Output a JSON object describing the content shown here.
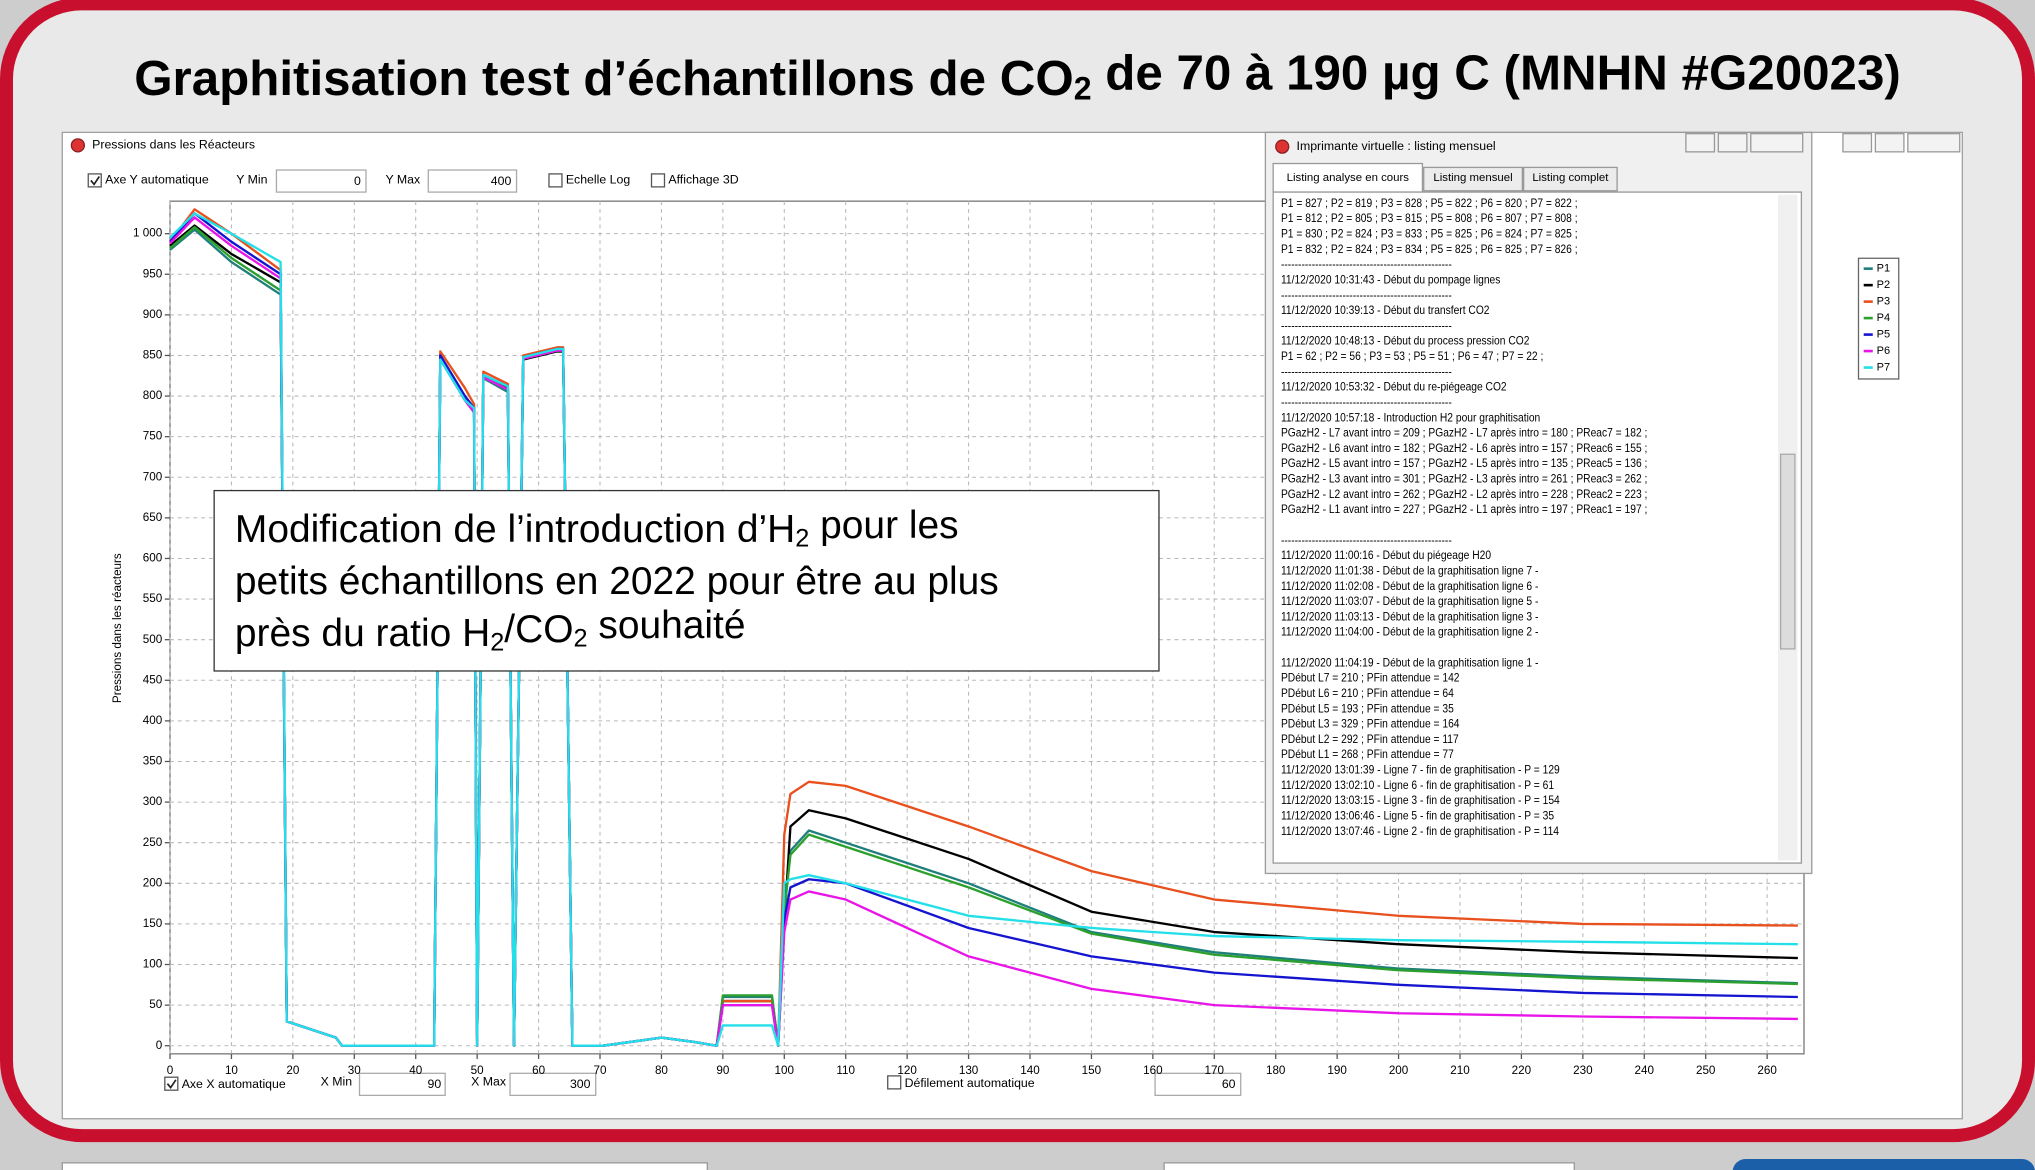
{
  "title_parts": [
    "Graphitisation test d’échantillons de CO",
    "2",
    " de 70 à 190 µg C (MNHN #G20023)"
  ],
  "chart_window": {
    "title": "Pressions dans les Réacteurs",
    "y_auto": "Axe Y automatique",
    "y_min_label": "Y Min",
    "y_min": 0,
    "y_max_label": "Y Max",
    "y_max": 400,
    "log_scale": "Echelle Log",
    "display_3d": "Affichage 3D",
    "x_auto": "Axe X automatique",
    "x_min_label": "X Min",
    "x_min": 90,
    "x_max_label": "X Max",
    "x_max": 300,
    "auto_scroll": "Défilement automatique",
    "scroll_value": 60
  },
  "chart_data": {
    "type": "line",
    "y_label": "Pressions dans les réacteurs",
    "x": [
      0,
      4,
      10,
      18,
      19,
      27,
      28,
      43,
      44,
      48,
      49.5,
      50,
      51,
      55,
      56,
      57.5,
      63,
      64,
      65.5,
      70,
      70.5,
      80,
      85,
      89,
      90,
      98,
      99,
      100,
      101,
      104,
      110,
      130,
      150,
      170,
      200,
      230,
      265
    ],
    "xlim": [
      0,
      266
    ],
    "ylim": [
      -10,
      1040
    ],
    "xticks": [
      0,
      10,
      20,
      30,
      40,
      50,
      60,
      70,
      80,
      90,
      100,
      110,
      120,
      130,
      140,
      150,
      160,
      170,
      180,
      190,
      200,
      210,
      220,
      230,
      240,
      250,
      260
    ],
    "yticks": [
      0,
      50,
      100,
      150,
      200,
      250,
      300,
      350,
      400,
      450,
      500,
      550,
      600,
      650,
      700,
      750,
      800,
      850,
      900,
      950,
      {
        "value": 1000,
        "label": "1 000"
      }
    ],
    "grid": true,
    "legend": "right",
    "series": [
      {
        "name": "P1",
        "color": "#1f7f7a",
        "values": [
          980,
          1005,
          965,
          925,
          30,
          10,
          0,
          0,
          848,
          795,
          780,
          0,
          822,
          805,
          0,
          845,
          855,
          855,
          0,
          0,
          0,
          10,
          5,
          0,
          60,
          60,
          0,
          170,
          240,
          265,
          250,
          200,
          140,
          115,
          95,
          85,
          77
        ]
      },
      {
        "name": "P2",
        "color": "#000000",
        "values": [
          985,
          1010,
          975,
          940,
          30,
          10,
          0,
          0,
          850,
          800,
          785,
          0,
          825,
          810,
          0,
          845,
          855,
          855,
          0,
          0,
          0,
          10,
          5,
          0,
          55,
          55,
          0,
          150,
          270,
          290,
          280,
          230,
          165,
          140,
          125,
          115,
          108
        ]
      },
      {
        "name": "P3",
        "color": "#e8501e",
        "values": [
          990,
          1030,
          1000,
          955,
          30,
          10,
          0,
          0,
          855,
          810,
          790,
          0,
          830,
          815,
          0,
          850,
          860,
          860,
          0,
          0,
          0,
          10,
          5,
          0,
          55,
          55,
          0,
          260,
          310,
          325,
          320,
          270,
          215,
          180,
          160,
          150,
          148
        ]
      },
      {
        "name": "P4",
        "color": "#2ca02c",
        "values": [
          982,
          1008,
          970,
          930,
          30,
          10,
          0,
          0,
          850,
          798,
          782,
          0,
          824,
          808,
          0,
          846,
          856,
          856,
          0,
          0,
          0,
          10,
          5,
          0,
          62,
          62,
          0,
          165,
          235,
          260,
          245,
          195,
          138,
          112,
          93,
          83,
          76
        ]
      },
      {
        "name": "P5",
        "color": "#1515d0",
        "values": [
          990,
          1025,
          990,
          950,
          30,
          10,
          0,
          0,
          850,
          800,
          785,
          0,
          826,
          812,
          0,
          848,
          858,
          858,
          0,
          0,
          0,
          10,
          5,
          0,
          50,
          50,
          0,
          155,
          195,
          205,
          200,
          145,
          110,
          90,
          75,
          65,
          60
        ]
      },
      {
        "name": "P6",
        "color": "#e815e8",
        "values": [
          988,
          1020,
          985,
          945,
          30,
          10,
          0,
          0,
          845,
          795,
          780,
          0,
          823,
          808,
          0,
          846,
          856,
          856,
          0,
          0,
          0,
          10,
          5,
          0,
          50,
          50,
          0,
          140,
          180,
          190,
          180,
          110,
          70,
          50,
          40,
          36,
          33
        ]
      },
      {
        "name": "P7",
        "color": "#22dfe8",
        "values": [
          995,
          1025,
          1000,
          965,
          30,
          10,
          0,
          0,
          845,
          795,
          785,
          0,
          826,
          812,
          0,
          848,
          858,
          858,
          0,
          0,
          0,
          10,
          5,
          0,
          25,
          25,
          0,
          200,
          205,
          210,
          200,
          160,
          145,
          135,
          130,
          128,
          125
        ]
      }
    ]
  },
  "annotation": {
    "lines": [
      [
        "Modification de l’introduction d’H",
        "2",
        " pour les"
      ],
      [
        "petits échantillons en 2022 pour être au plus"
      ],
      [
        "près du ratio H",
        "2",
        "/CO",
        "2",
        " souhaité"
      ]
    ]
  },
  "listing_window": {
    "title": "Imprimante virtuelle : listing mensuel",
    "tabs": [
      "Listing analyse en cours",
      "Listing mensuel",
      "Listing complet"
    ],
    "blocks": [
      [
        "P1 = 827 ; P2 = 819 ; P3 = 828 ; P5 = 822 ; P6 = 820 ; P7 = 822 ;",
        "P1 = 812 ; P2 = 805 ; P3 = 815 ; P5 = 808 ; P6 = 807 ; P7 = 808 ;",
        "P1 = 830 ; P2 = 824 ; P3 = 833 ; P5 = 825 ; P6 = 824 ; P7 = 825 ;",
        "P1 = 832 ; P2 = 824 ; P3 = 834 ; P5 = 825 ; P6 = 825 ; P7 = 826 ;",
        "--------------------------------------------------",
        "11/12/2020 10:31:43 - Début du pompage lignes",
        "--------------------------------------------------",
        "11/12/2020 10:39:13 - Début du transfert CO2",
        "--------------------------------------------------",
        "11/12/2020 10:48:13 - Début du process pression CO2",
        "P1 = 62 ; P2 = 56 ; P3 = 53 ; P5 = 51 ; P6 = 47 ; P7 = 22 ;",
        "--------------------------------------------------",
        "11/12/2020 10:53:32 - Début du re-piégeage CO2",
        "--------------------------------------------------",
        "11/12/2020 10:57:18 - Introduction H2 pour graphitisation",
        "PGazH2 - L7 avant intro = 209 ; PGazH2 - L7 après intro = 180 ; PReac7 = 182 ;",
        "PGazH2 - L6 avant intro = 182 ; PGazH2 - L6 après intro = 157 ; PReac6 = 155 ;",
        "PGazH2 - L5 avant intro = 157 ; PGazH2 - L5 après intro = 135 ; PReac5 = 136 ;",
        "PGazH2 - L3 avant intro = 301 ; PGazH2 - L3 après intro = 261 ; PReac3 = 262 ;",
        "PGazH2 - L2 avant intro = 262 ; PGazH2 - L2 après intro = 228 ; PReac2 = 223 ;",
        "PGazH2 - L1 avant intro = 227 ; PGazH2 - L1 après intro = 197 ; PReac1 = 197 ;"
      ],
      [
        "--------------------------------------------------",
        "11/12/2020 11:00:16 - Début du piégeage H20",
        "11/12/2020 11:01:38 - Début de la graphitisation ligne 7 -",
        "11/12/2020 11:02:08 - Début de la graphitisation ligne 6 -",
        "11/12/2020 11:03:07 - Début de la graphitisation ligne 5 -",
        "11/12/2020 11:03:13 - Début de la graphitisation ligne 3 -",
        "11/12/2020 11:04:00 - Début de la graphitisation ligne 2 -"
      ],
      [
        "11/12/2020 11:04:19 - Début de la graphitisation ligne 1 -",
        "PDébut L7 = 210 ; PFin attendue = 142",
        "PDébut L6 = 210 ; PFin attendue = 64",
        "PDébut L5 = 193 ; PFin attendue = 35",
        "PDébut L3 = 329 ; PFin attendue = 164",
        "PDébut L2 = 292 ; PFin attendue = 117",
        "PDébut L1 = 268 ; PFin attendue = 77",
        "11/12/2020 13:01:39 - Ligne 7 - fin de graphitisation - P = 129",
        "11/12/2020 13:02:10 - Ligne 6 - fin de graphitisation - P = 61",
        "11/12/2020 13:03:15 - Ligne 3 - fin de graphitisation - P = 154",
        "11/12/2020 13:06:46 - Ligne 5 - fin de graphitisation - P = 35",
        "11/12/2020 13:07:46 - Ligne 2 - fin de graphitisation - P = 114"
      ]
    ]
  }
}
